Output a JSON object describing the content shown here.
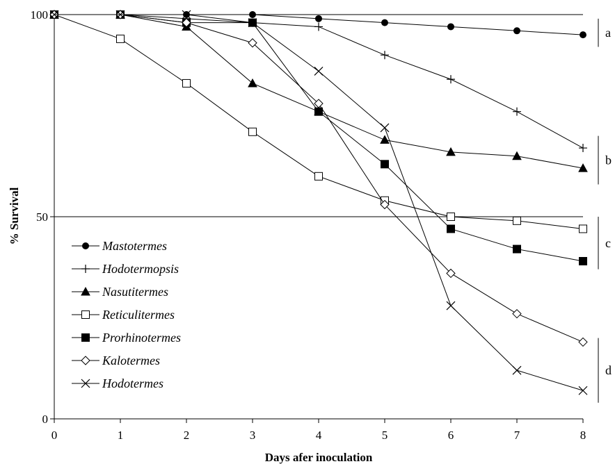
{
  "chart_data": {
    "type": "line",
    "xlabel": "Days afer inoculation",
    "ylabel": "% Survival",
    "x": [
      0,
      1,
      2,
      3,
      4,
      5,
      6,
      7,
      8
    ],
    "xlim": [
      0,
      8
    ],
    "ylim": [
      0,
      100
    ],
    "x_ticks": [
      "0",
      "1",
      "2",
      "3",
      "4",
      "5",
      "6",
      "7",
      "8"
    ],
    "y_ticks": [
      "0",
      "50",
      "100"
    ],
    "reference_lines": [
      100,
      50
    ],
    "legend_position": "bottom-left",
    "series": [
      {
        "name": "Mastotermes",
        "marker": "filled-circle",
        "values": [
          100,
          100,
          100,
          100,
          99,
          98,
          97,
          96,
          95
        ]
      },
      {
        "name": "Hodotermopsis",
        "marker": "plus",
        "values": [
          100,
          100,
          99,
          98,
          97,
          90,
          84,
          76,
          67
        ]
      },
      {
        "name": "Nasutitermes",
        "marker": "filled-triangle",
        "values": [
          100,
          100,
          97,
          83,
          76,
          69,
          66,
          65,
          62
        ]
      },
      {
        "name": "Reticulitermes",
        "marker": "open-square",
        "values": [
          100,
          94,
          83,
          71,
          60,
          54,
          50,
          49,
          47
        ]
      },
      {
        "name": "Prorhinotermes",
        "marker": "filled-square",
        "values": [
          100,
          100,
          98,
          98,
          76,
          63,
          47,
          42,
          39
        ]
      },
      {
        "name": "Kalotermes",
        "marker": "open-diamond",
        "values": [
          100,
          100,
          98,
          93,
          78,
          53,
          36,
          26,
          19
        ]
      },
      {
        "name": "Hodotermes",
        "marker": "x",
        "values": [
          100,
          100,
          100,
          98,
          86,
          72,
          28,
          12,
          7
        ]
      }
    ],
    "groups": [
      {
        "label": "a",
        "y_range": [
          92,
          99
        ]
      },
      {
        "label": "b",
        "y_range": [
          58,
          70
        ]
      },
      {
        "label": "c",
        "y_range": [
          37,
          50
        ]
      },
      {
        "label": "d",
        "y_range": [
          4,
          20
        ]
      }
    ]
  }
}
